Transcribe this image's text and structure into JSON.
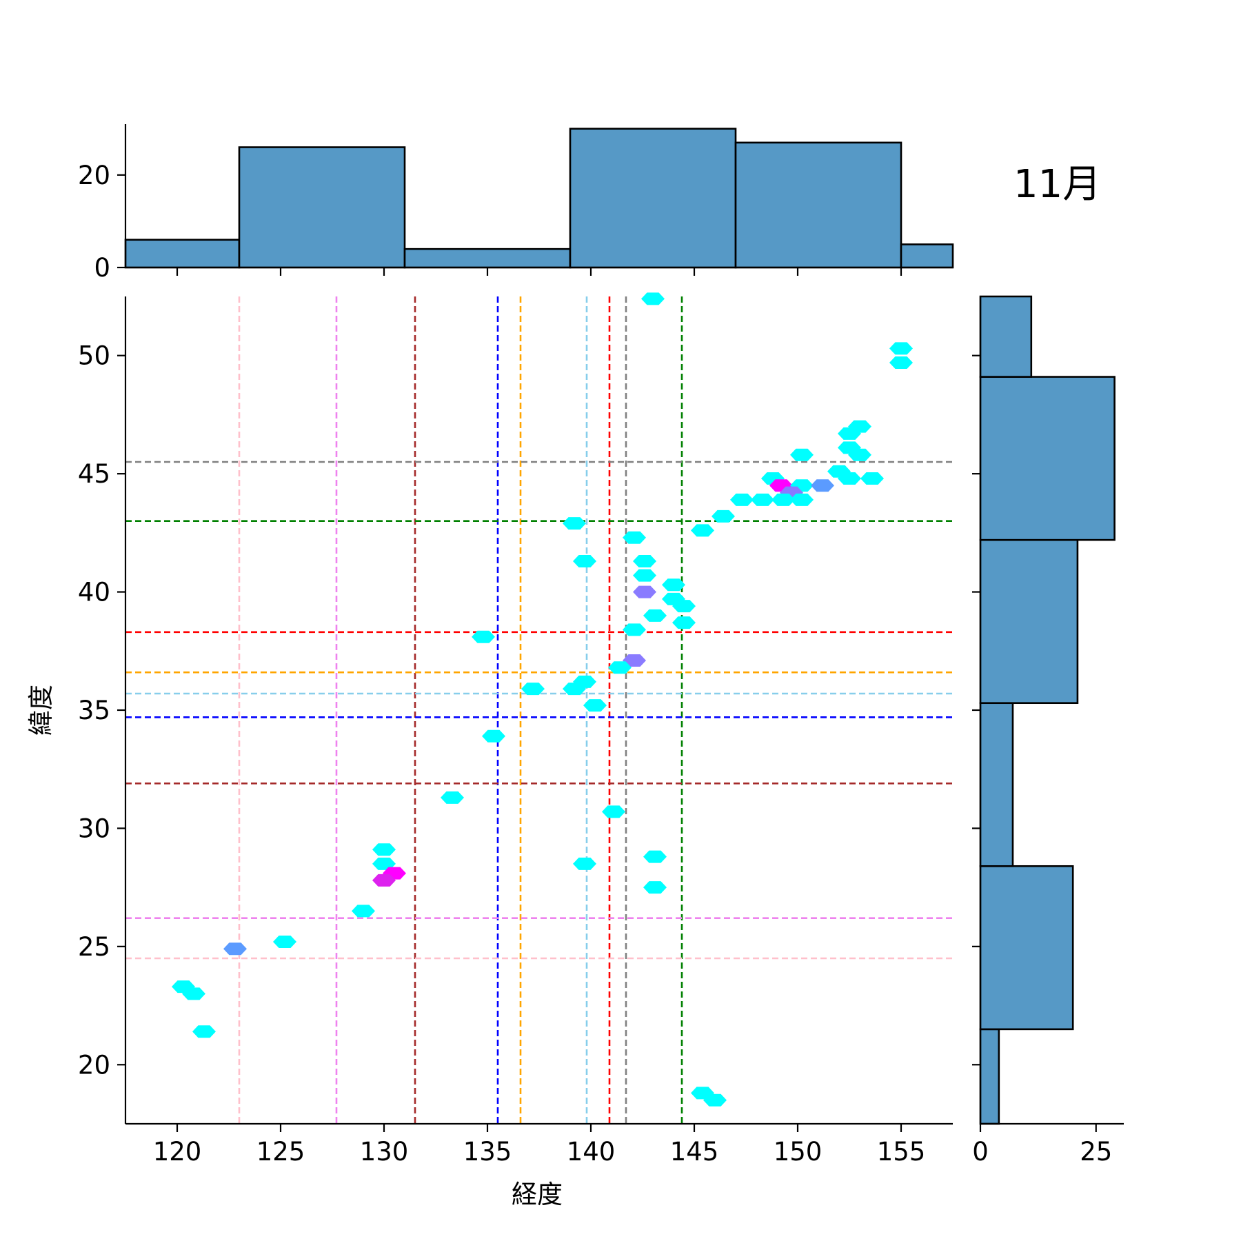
{
  "chart_data": {
    "type": "hexbin-joint",
    "title": "11月",
    "xlabel": "経度",
    "ylabel": "緯度",
    "xlim": [
      117.5,
      157.5
    ],
    "ylim": [
      17.5,
      52.5
    ],
    "xticks": [
      120,
      125,
      130,
      135,
      140,
      145,
      150,
      155
    ],
    "yticks": [
      20,
      25,
      30,
      35,
      40,
      45,
      50
    ],
    "marg_x_ticks": [
      0,
      20
    ],
    "marg_y_ticks": [
      0,
      25
    ],
    "marg_x_max": 31,
    "marg_y_max": 31,
    "hist_x": {
      "edges": [
        117.5,
        123,
        131,
        139,
        147,
        155,
        157.5
      ],
      "counts": [
        6,
        26,
        4,
        30,
        27,
        5
      ]
    },
    "hist_y": {
      "edges": [
        17.5,
        21.5,
        28.4,
        35.3,
        42.2,
        49.1,
        52.5
      ],
      "counts": [
        4,
        20,
        7,
        21,
        29,
        11
      ]
    },
    "vlines": [
      {
        "x": 123,
        "color": "#ffc0cb"
      },
      {
        "x": 127.7,
        "color": "#ee82ee"
      },
      {
        "x": 131.5,
        "color": "#a52a2a"
      },
      {
        "x": 135.5,
        "color": "#0000ff"
      },
      {
        "x": 136.6,
        "color": "#ffa500"
      },
      {
        "x": 139.8,
        "color": "#87ceeb"
      },
      {
        "x": 140.9,
        "color": "#ff0000"
      },
      {
        "x": 141.7,
        "color": "#808080"
      },
      {
        "x": 144.4,
        "color": "#008000"
      }
    ],
    "hlines": [
      {
        "y": 24.5,
        "color": "#ffc0cb"
      },
      {
        "y": 26.2,
        "color": "#ee82ee"
      },
      {
        "y": 31.9,
        "color": "#a52a2a"
      },
      {
        "y": 34.7,
        "color": "#0000ff"
      },
      {
        "y": 35.7,
        "color": "#87ceeb"
      },
      {
        "y": 36.6,
        "color": "#ffa500"
      },
      {
        "y": 38.3,
        "color": "#ff0000"
      },
      {
        "y": 43.0,
        "color": "#008000"
      },
      {
        "y": 45.5,
        "color": "#808080"
      }
    ],
    "hexbins": [
      {
        "x": 143.0,
        "y": 52.4,
        "color": "#00ffff"
      },
      {
        "x": 155.0,
        "y": 50.3,
        "color": "#00ffff"
      },
      {
        "x": 155.0,
        "y": 49.7,
        "color": "#00ffff"
      },
      {
        "x": 153.0,
        "y": 47.0,
        "color": "#00ffff"
      },
      {
        "x": 152.5,
        "y": 46.7,
        "color": "#00ffff"
      },
      {
        "x": 152.5,
        "y": 46.1,
        "color": "#00ffff"
      },
      {
        "x": 153.0,
        "y": 45.8,
        "color": "#00ffff"
      },
      {
        "x": 150.2,
        "y": 45.8,
        "color": "#00ffff"
      },
      {
        "x": 152.0,
        "y": 45.1,
        "color": "#00ffff"
      },
      {
        "x": 152.5,
        "y": 44.8,
        "color": "#00ffff"
      },
      {
        "x": 153.6,
        "y": 44.8,
        "color": "#00ffff"
      },
      {
        "x": 148.8,
        "y": 44.8,
        "color": "#00ffff"
      },
      {
        "x": 149.2,
        "y": 44.5,
        "color": "#ff00ff"
      },
      {
        "x": 150.2,
        "y": 44.5,
        "color": "#00ffff"
      },
      {
        "x": 151.2,
        "y": 44.5,
        "color": "#5b9bff"
      },
      {
        "x": 149.7,
        "y": 44.2,
        "color": "#8a7bff"
      },
      {
        "x": 147.3,
        "y": 43.9,
        "color": "#00ffff"
      },
      {
        "x": 148.3,
        "y": 43.9,
        "color": "#00ffff"
      },
      {
        "x": 149.3,
        "y": 43.9,
        "color": "#00ffff"
      },
      {
        "x": 150.2,
        "y": 43.9,
        "color": "#00ffff"
      },
      {
        "x": 146.4,
        "y": 43.2,
        "color": "#00ffff"
      },
      {
        "x": 139.2,
        "y": 42.9,
        "color": "#00ffff"
      },
      {
        "x": 145.4,
        "y": 42.6,
        "color": "#00ffff"
      },
      {
        "x": 142.1,
        "y": 42.3,
        "color": "#00ffff"
      },
      {
        "x": 139.7,
        "y": 41.3,
        "color": "#00ffff"
      },
      {
        "x": 142.6,
        "y": 41.3,
        "color": "#00ffff"
      },
      {
        "x": 142.6,
        "y": 40.7,
        "color": "#00ffff"
      },
      {
        "x": 144.0,
        "y": 40.3,
        "color": "#00ffff"
      },
      {
        "x": 142.6,
        "y": 40.0,
        "color": "#8a7bff"
      },
      {
        "x": 144.0,
        "y": 39.7,
        "color": "#00ffff"
      },
      {
        "x": 144.5,
        "y": 39.4,
        "color": "#00ffff"
      },
      {
        "x": 143.1,
        "y": 39.0,
        "color": "#00ffff"
      },
      {
        "x": 144.5,
        "y": 38.7,
        "color": "#00ffff"
      },
      {
        "x": 142.1,
        "y": 38.4,
        "color": "#00ffff"
      },
      {
        "x": 134.8,
        "y": 38.1,
        "color": "#00ffff"
      },
      {
        "x": 142.1,
        "y": 37.1,
        "color": "#8a7bff"
      },
      {
        "x": 141.4,
        "y": 36.8,
        "color": "#00ffff"
      },
      {
        "x": 139.7,
        "y": 36.2,
        "color": "#00ffff"
      },
      {
        "x": 139.2,
        "y": 35.9,
        "color": "#00ffff"
      },
      {
        "x": 137.2,
        "y": 35.9,
        "color": "#00ffff"
      },
      {
        "x": 140.2,
        "y": 35.2,
        "color": "#00ffff"
      },
      {
        "x": 135.3,
        "y": 33.9,
        "color": "#00ffff"
      },
      {
        "x": 133.3,
        "y": 31.3,
        "color": "#00ffff"
      },
      {
        "x": 141.1,
        "y": 30.7,
        "color": "#00ffff"
      },
      {
        "x": 130.0,
        "y": 29.1,
        "color": "#00ffff"
      },
      {
        "x": 143.1,
        "y": 28.8,
        "color": "#00ffff"
      },
      {
        "x": 130.0,
        "y": 28.5,
        "color": "#00ffff"
      },
      {
        "x": 139.7,
        "y": 28.5,
        "color": "#00ffff"
      },
      {
        "x": 130.5,
        "y": 28.1,
        "color": "#ff00ff"
      },
      {
        "x": 130.0,
        "y": 27.8,
        "color": "#dd22ee"
      },
      {
        "x": 143.1,
        "y": 27.5,
        "color": "#00ffff"
      },
      {
        "x": 129.0,
        "y": 26.5,
        "color": "#00ffff"
      },
      {
        "x": 125.2,
        "y": 25.2,
        "color": "#00ffff"
      },
      {
        "x": 122.8,
        "y": 24.9,
        "color": "#5b9bff"
      },
      {
        "x": 120.3,
        "y": 23.3,
        "color": "#00ffff"
      },
      {
        "x": 120.8,
        "y": 23.0,
        "color": "#00ffff"
      },
      {
        "x": 121.3,
        "y": 21.4,
        "color": "#00ffff"
      },
      {
        "x": 145.4,
        "y": 18.8,
        "color": "#00ffff"
      },
      {
        "x": 146.0,
        "y": 18.5,
        "color": "#00ffff"
      }
    ],
    "hist_color": "#5699c6",
    "grid": false
  }
}
